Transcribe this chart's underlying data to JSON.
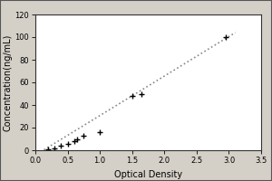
{
  "x_data": [
    0.2,
    0.3,
    0.4,
    0.5,
    0.6,
    0.65,
    0.75,
    1.0,
    1.5,
    1.65,
    2.95
  ],
  "y_data": [
    1.0,
    2.0,
    4.0,
    6.0,
    8.0,
    10.0,
    13.0,
    16.0,
    48.0,
    50.0,
    100.0
  ],
  "fit_x": [
    0.08,
    3.1
  ],
  "fit_y": [
    -1.5,
    104.0
  ],
  "xlabel": "Optical Density",
  "ylabel": "Concentration(ng/mL)",
  "xlim": [
    0,
    3.5
  ],
  "ylim": [
    0,
    120
  ],
  "xticks": [
    0,
    0.5,
    1,
    1.5,
    2,
    2.5,
    3,
    3.5
  ],
  "yticks": [
    0,
    20,
    40,
    60,
    80,
    100,
    120
  ],
  "outer_bg": "#d4d0c8",
  "inner_bg": "#ffffff",
  "line_color": "#888888",
  "marker_color": "#000000",
  "marker": "+",
  "title_fontsize": 7,
  "label_fontsize": 7,
  "tick_fontsize": 6
}
